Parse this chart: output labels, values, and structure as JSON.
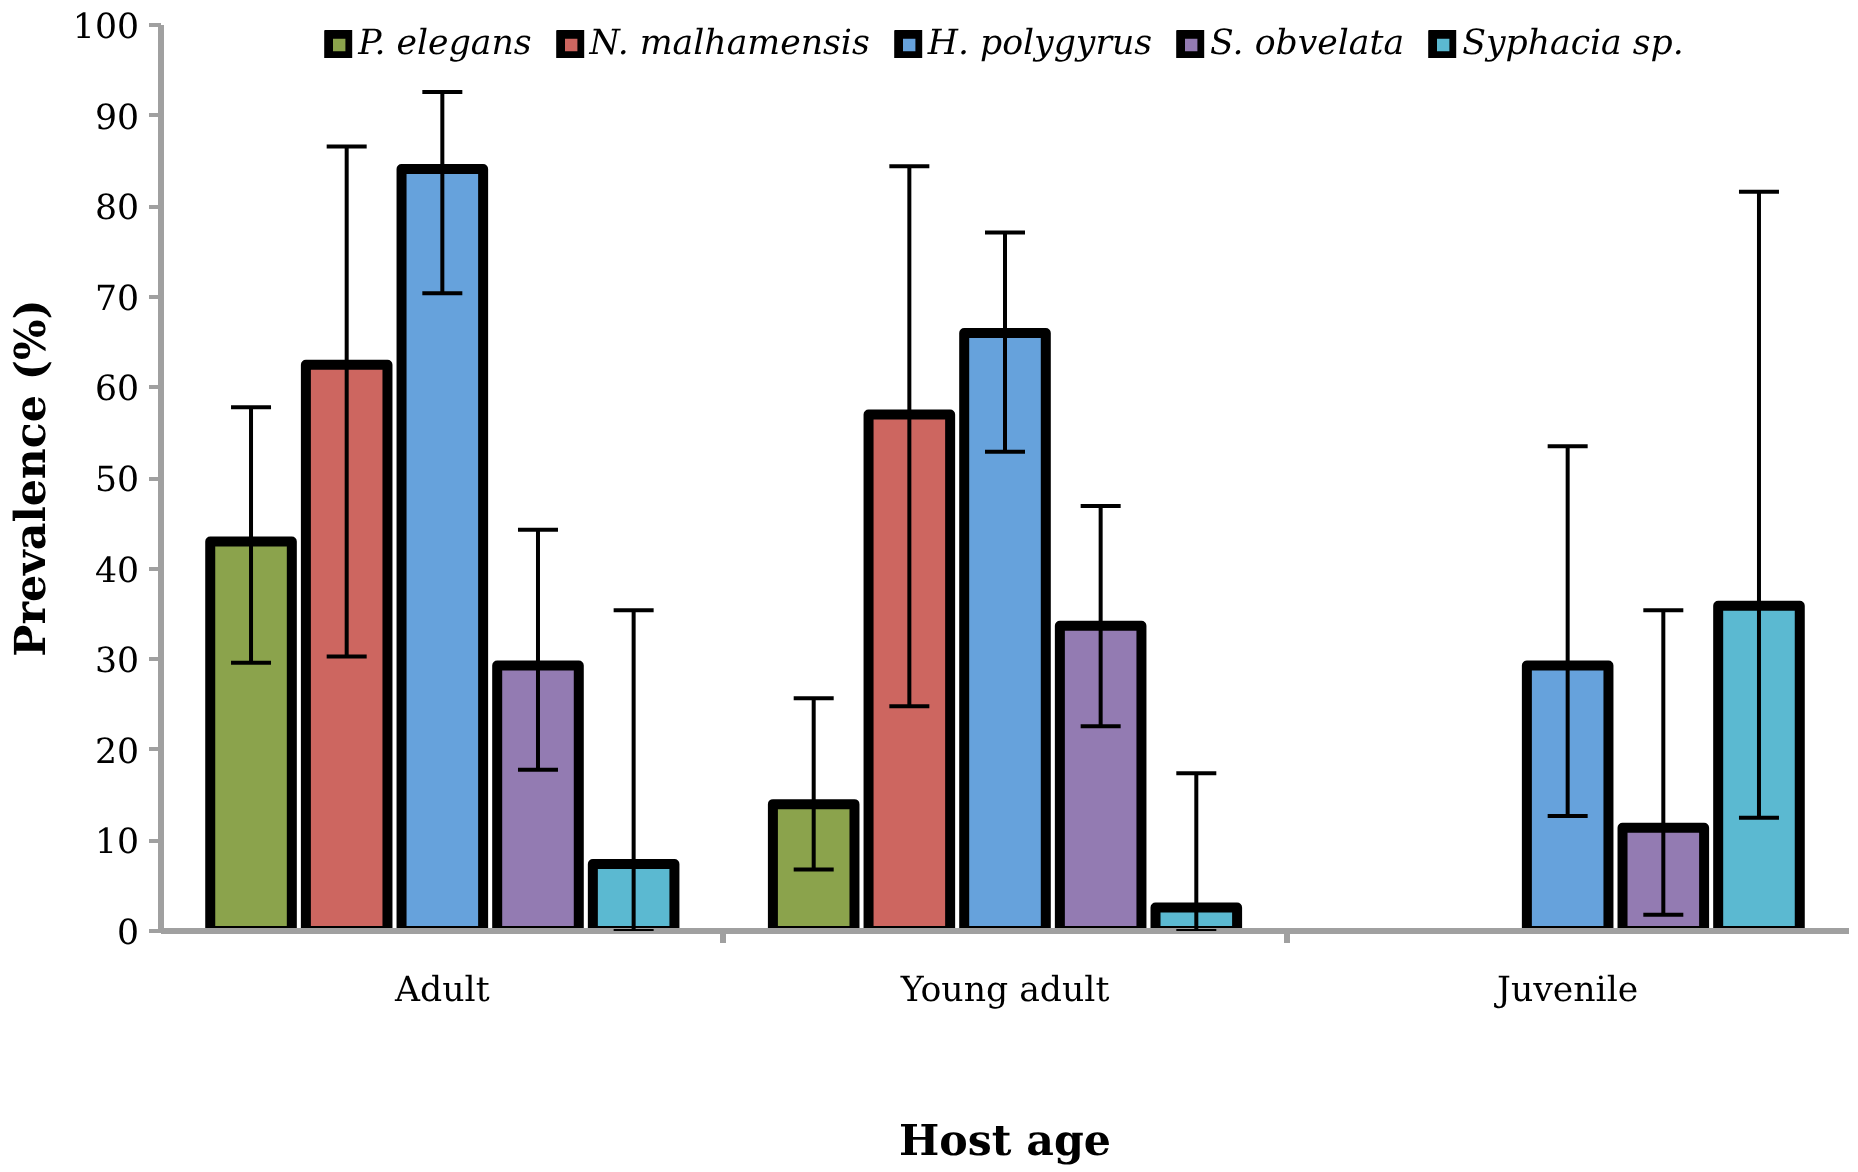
{
  "chart_data": {
    "type": "bar",
    "xlabel": "Host age",
    "ylabel": "Prevalence (%)",
    "categories": [
      "Adult",
      "Young adult",
      "Juvenile"
    ],
    "series": [
      {
        "name": "P. elegans",
        "color": "#8ba34c",
        "values": [
          43,
          14.0,
          null
        ],
        "errors": [
          [
            29.6,
            57.8
          ],
          [
            6.8,
            25.7
          ],
          null
        ]
      },
      {
        "name": "N. malhamensis",
        "color": "#cd6660",
        "values": [
          62.5,
          57.0,
          null
        ],
        "errors": [
          [
            30.3,
            86.6
          ],
          [
            24.8,
            84.4
          ],
          null
        ]
      },
      {
        "name": "H. polygyrus",
        "color": "#66a2dc",
        "values": [
          84.1,
          66.0,
          29.3
        ],
        "errors": [
          [
            70.4,
            92.6
          ],
          [
            52.9,
            77.1
          ],
          [
            12.7,
            53.5
          ]
        ]
      },
      {
        "name": "S. obvelata",
        "color": "#937bb2",
        "values": [
          29.3,
          33.7,
          11.4
        ],
        "errors": [
          [
            17.8,
            44.3
          ],
          [
            22.6,
            46.9
          ],
          [
            1.8,
            35.4
          ]
        ]
      },
      {
        "name": "Syphacia sp.",
        "color": "#5bb9d1",
        "values": [
          7.4,
          2.6,
          35.9
        ],
        "errors": [
          [
            0,
            35.4
          ],
          [
            0,
            17.4
          ],
          [
            12.5,
            81.6
          ]
        ]
      }
    ],
    "ylim": [
      0,
      100
    ],
    "yticks": [
      0,
      10,
      20,
      30,
      40,
      50,
      60,
      70,
      80,
      90,
      100
    ],
    "grid": false,
    "legend": "top"
  }
}
